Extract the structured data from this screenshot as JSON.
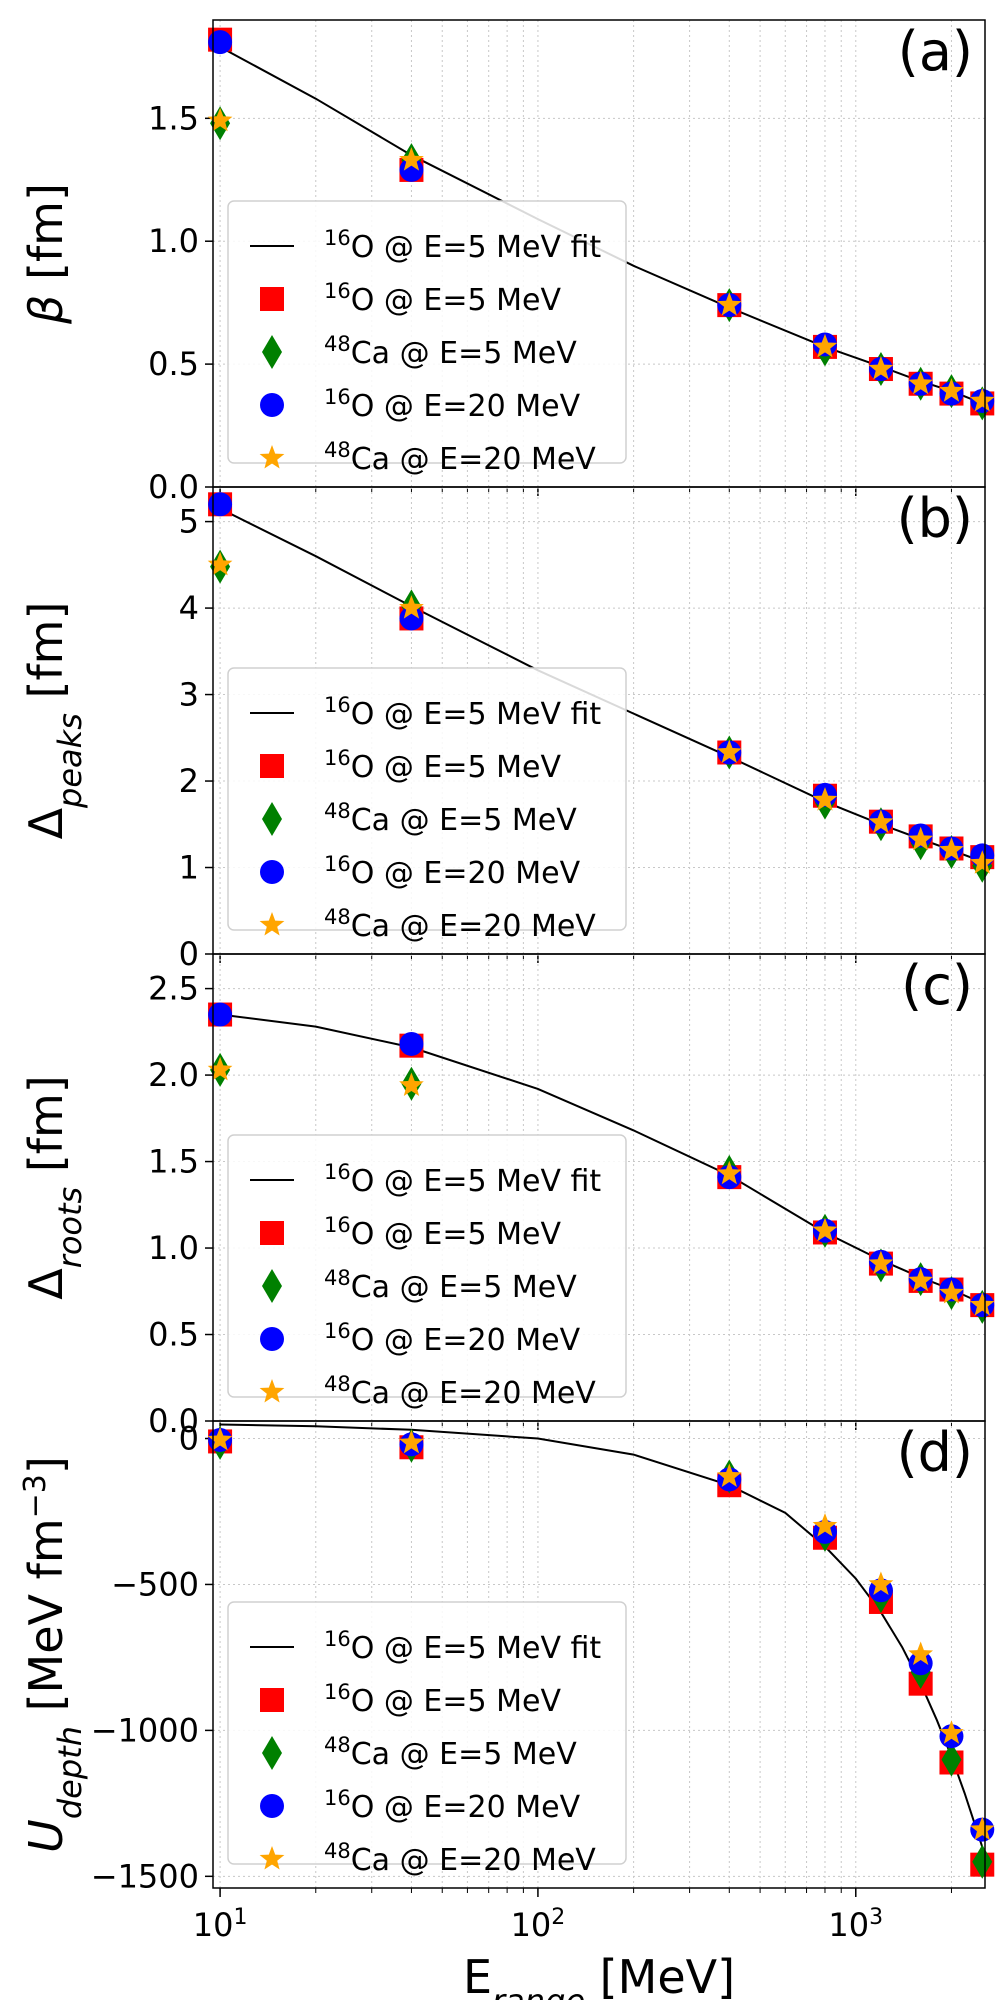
{
  "chart_data": {
    "type": "scatter",
    "x_axis": {
      "label_main": "E",
      "label_sub": "range",
      "label_unit": " [MeV]",
      "scale": "log",
      "xlim": [
        9.5,
        2550
      ],
      "ticks": [
        {
          "base": "10",
          "exp": "1",
          "value": 10
        },
        {
          "base": "10",
          "exp": "2",
          "value": 100
        },
        {
          "base": "10",
          "exp": "3",
          "value": 1000
        }
      ]
    },
    "x": [
      10,
      40,
      400,
      800,
      1200,
      1600,
      2000,
      2500
    ],
    "legend_entries": [
      {
        "pre": "16",
        "text": "O @ E=5 MeV fit",
        "marker": "line",
        "color": "#000000"
      },
      {
        "pre": "16",
        "text": "O @ E=5 MeV",
        "marker": "square",
        "color": "#ff0000"
      },
      {
        "pre": "48",
        "text": "Ca @ E=5 MeV",
        "marker": "diamond",
        "color": "#008000"
      },
      {
        "pre": "16",
        "text": "O @ E=20 MeV",
        "marker": "circle",
        "color": "#0000ff"
      },
      {
        "pre": "48",
        "text": "Ca @ E=20 MeV",
        "marker": "star",
        "color": "#ffa500"
      }
    ],
    "panels": [
      {
        "tag": "(a)",
        "ylabel": {
          "main": "β",
          "sub": "",
          "sup": "",
          "unit": " [fm]"
        },
        "ylim": [
          0.0,
          1.9
        ],
        "yticks": [
          {
            "value": 0.0,
            "label": "0.0"
          },
          {
            "value": 0.5,
            "label": "0.5"
          },
          {
            "value": 1.0,
            "label": "1.0"
          },
          {
            "value": 1.5,
            "label": "1.5"
          }
        ],
        "fit": {
          "x": [
            10,
            20,
            40,
            100,
            200,
            400,
            800,
            1200,
            1600,
            2000,
            2500
          ],
          "y": [
            1.79,
            1.58,
            1.35,
            1.09,
            0.9,
            0.73,
            0.57,
            0.49,
            0.43,
            0.39,
            0.34
          ]
        },
        "series": [
          {
            "name": "16O @ E=5 MeV",
            "y": [
              1.82,
              1.29,
              0.74,
              0.57,
              0.48,
              0.42,
              0.38,
              0.34
            ]
          },
          {
            "name": "48Ca @ E=5 MeV",
            "y": [
              1.48,
              1.33,
              0.74,
              0.56,
              0.48,
              0.42,
              0.39,
              0.34
            ]
          },
          {
            "name": "16O @ E=20 MeV",
            "y": [
              1.81,
              1.29,
              0.74,
              0.58,
              0.48,
              0.42,
              0.38,
              0.35
            ]
          },
          {
            "name": "48Ca @ E=20 MeV",
            "y": [
              1.49,
              1.33,
              0.74,
              0.57,
              0.48,
              0.42,
              0.39,
              0.35
            ]
          }
        ]
      },
      {
        "tag": "(b)",
        "ylabel": {
          "main": "Δ",
          "sub": "peaks",
          "sup": "",
          "unit": " [fm]"
        },
        "ylim": [
          0,
          5.4
        ],
        "yticks": [
          {
            "value": 0,
            "label": "0"
          },
          {
            "value": 1,
            "label": "1"
          },
          {
            "value": 2,
            "label": "2"
          },
          {
            "value": 3,
            "label": "3"
          },
          {
            "value": 4,
            "label": "4"
          },
          {
            "value": 5,
            "label": "5"
          }
        ],
        "fit": {
          "x": [
            10,
            20,
            40,
            100,
            200,
            400,
            800,
            1200,
            1600,
            2000,
            2500
          ],
          "y": [
            5.15,
            4.6,
            4.02,
            3.28,
            2.78,
            2.28,
            1.76,
            1.5,
            1.33,
            1.2,
            1.07
          ]
        },
        "series": [
          {
            "name": "16O @ E=5 MeV",
            "y": [
              5.2,
              3.88,
              2.33,
              1.83,
              1.53,
              1.36,
              1.22,
              1.12
            ]
          },
          {
            "name": "48Ca @ E=5 MeV",
            "y": [
              4.48,
              4.02,
              2.33,
              1.75,
              1.5,
              1.28,
              1.18,
              1.02
            ]
          },
          {
            "name": "16O @ E=20 MeV",
            "y": [
              5.2,
              3.88,
              2.33,
              1.84,
              1.53,
              1.37,
              1.22,
              1.14
            ]
          },
          {
            "name": "48Ca @ E=20 MeV",
            "y": [
              4.5,
              4.0,
              2.33,
              1.78,
              1.52,
              1.32,
              1.2,
              1.05
            ]
          }
        ]
      },
      {
        "tag": "(c)",
        "ylabel": {
          "main": "Δ",
          "sub": "roots",
          "sup": "",
          "unit": " [fm]"
        },
        "ylim": [
          0.0,
          2.7
        ],
        "yticks": [
          {
            "value": 0.0,
            "label": "0.0"
          },
          {
            "value": 0.5,
            "label": "0.5"
          },
          {
            "value": 1.0,
            "label": "1.0"
          },
          {
            "value": 1.5,
            "label": "1.5"
          },
          {
            "value": 2.0,
            "label": "2.0"
          },
          {
            "value": 2.5,
            "label": "2.5"
          }
        ],
        "fit": {
          "x": [
            10,
            20,
            40,
            100,
            200,
            400,
            800,
            1200,
            1600,
            2000,
            2500
          ],
          "y": [
            2.35,
            2.28,
            2.16,
            1.92,
            1.68,
            1.42,
            1.09,
            0.93,
            0.83,
            0.76,
            0.68
          ]
        },
        "series": [
          {
            "name": "16O @ E=5 MeV",
            "y": [
              2.35,
              2.17,
              1.41,
              1.09,
              0.91,
              0.81,
              0.76,
              0.67
            ]
          },
          {
            "name": "48Ca @ E=5 MeV",
            "y": [
              2.03,
              1.95,
              1.44,
              1.1,
              0.9,
              0.82,
              0.74,
              0.66
            ]
          },
          {
            "name": "16O @ E=20 MeV",
            "y": [
              2.35,
              2.18,
              1.41,
              1.1,
              0.92,
              0.82,
              0.76,
              0.67
            ]
          },
          {
            "name": "48Ca @ E=20 MeV",
            "y": [
              2.03,
              1.94,
              1.43,
              1.1,
              0.91,
              0.81,
              0.74,
              0.67
            ]
          }
        ]
      },
      {
        "tag": "(d)",
        "ylabel": {
          "main": "U",
          "sub": "depth",
          "sup": "−3",
          "unit": " [MeV fm"
        },
        "ylim": [
          -1540,
          60
        ],
        "yticks": [
          {
            "value": 0,
            "label": "0"
          },
          {
            "value": -500,
            "label": "−500"
          },
          {
            "value": -1000,
            "label": "−1000"
          },
          {
            "value": -1500,
            "label": "−1500"
          }
        ],
        "fit": {
          "x": [
            10,
            20,
            40,
            100,
            200,
            400,
            600,
            800,
            1000,
            1200,
            1400,
            1600,
            1800,
            2000,
            2200,
            2500
          ],
          "y": [
            48,
            42,
            30,
            0,
            -55,
            -160,
            -255,
            -370,
            -480,
            -595,
            -715,
            -840,
            -965,
            -1090,
            -1215,
            -1400
          ]
        },
        "series": [
          {
            "name": "16O @ E=5 MeV",
            "y": [
              -10,
              -30,
              -160,
              -340,
              -560,
              -840,
              -1110,
              -1460
            ]
          },
          {
            "name": "48Ca @ E=5 MeV",
            "y": [
              -15,
              -25,
              -130,
              -330,
              -540,
              -800,
              -1100,
              -1450
            ]
          },
          {
            "name": "16O @ E=20 MeV",
            "y": [
              -5,
              -20,
              -140,
              -320,
              -520,
              -770,
              -1020,
              -1340
            ]
          },
          {
            "name": "48Ca @ E=20 MeV",
            "y": [
              -5,
              -15,
              -130,
              -300,
              -500,
              -740,
              -1010,
              -1340
            ]
          }
        ]
      }
    ]
  }
}
